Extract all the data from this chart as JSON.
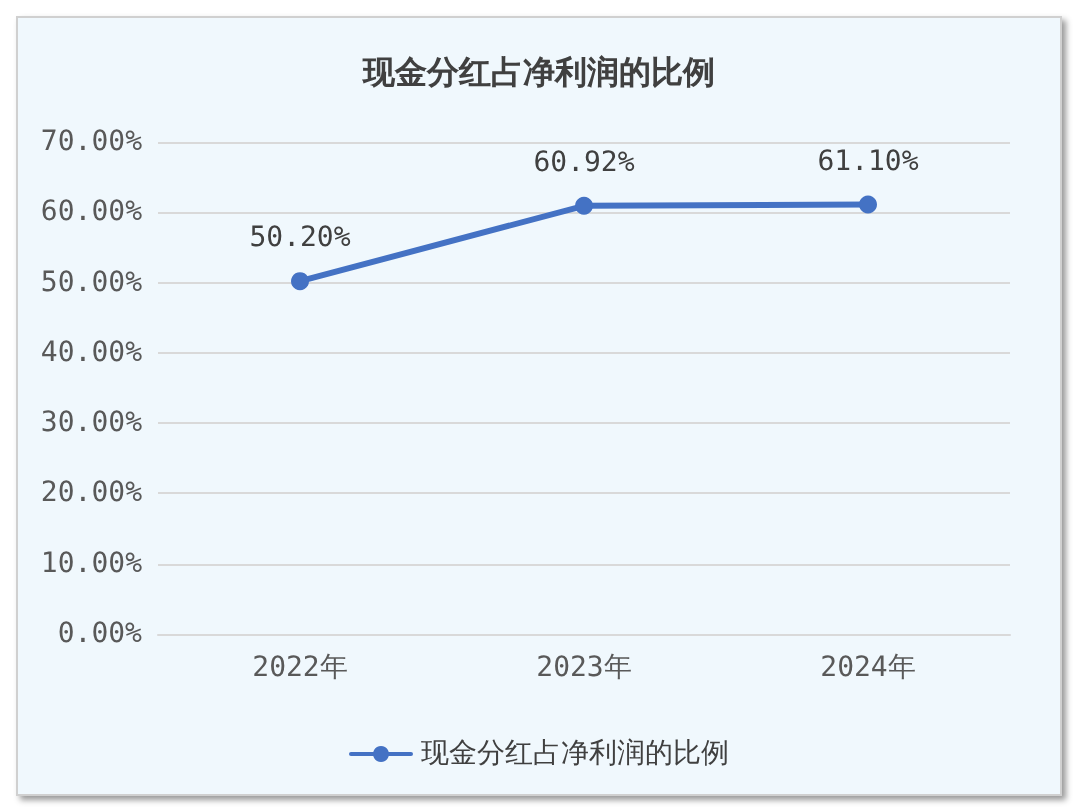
{
  "chart_data": {
    "type": "line",
    "title": "现金分红占净利润的比例",
    "categories": [
      "2022年",
      "2023年",
      "2024年"
    ],
    "series": [
      {
        "name": "现金分红占净利润的比例",
        "color": "#4472c4",
        "values": [
          50.2,
          60.92,
          61.1
        ],
        "value_labels": [
          "50.20%",
          "60.92%",
          "61.10%"
        ]
      }
    ],
    "ylim": [
      0,
      70
    ],
    "yticks": [
      {
        "value": 0,
        "label": "0.00%"
      },
      {
        "value": 10,
        "label": "10.00%"
      },
      {
        "value": 20,
        "label": "20.00%"
      },
      {
        "value": 30,
        "label": "30.00%"
      },
      {
        "value": 40,
        "label": "40.00%"
      },
      {
        "value": 50,
        "label": "50.00%"
      },
      {
        "value": 60,
        "label": "60.00%"
      },
      {
        "value": 70,
        "label": "70.00%"
      }
    ],
    "grid": "y",
    "legend": "bottom",
    "marker": "circle",
    "line_style": "solid"
  }
}
